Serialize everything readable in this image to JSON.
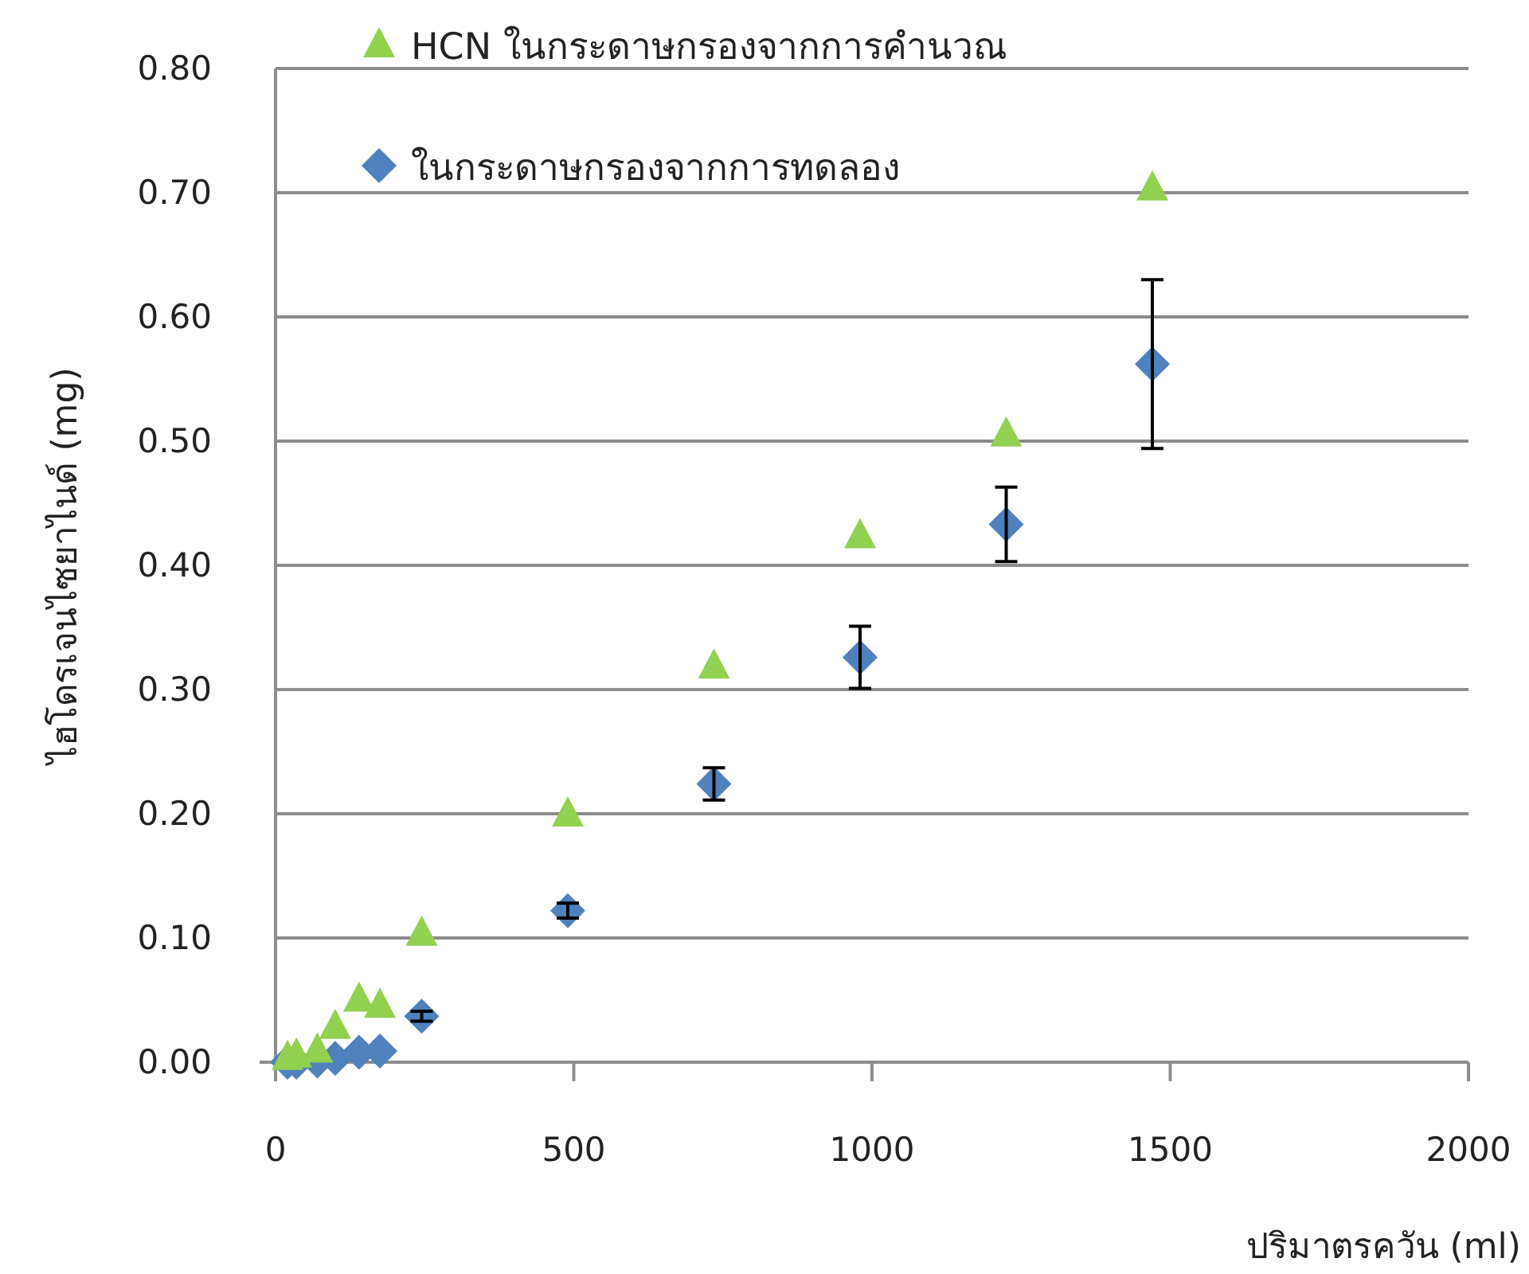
{
  "chart_data": {
    "type": "scatter",
    "xlabel": "ปริมาตรควัน (ml)",
    "ylabel": "ไฮโดรเจนไซยาไนด์ (mg)",
    "xlim": [
      0,
      2000
    ],
    "xticks": [
      0,
      500,
      1000,
      1500,
      2000
    ],
    "ylim": [
      0,
      0.8
    ],
    "yticks": [
      {
        "value": 0,
        "label": "0.00"
      },
      {
        "value": 0.1,
        "label": "0.10"
      },
      {
        "value": 0.2,
        "label": "0.20"
      },
      {
        "value": 0.3,
        "label": "0.30"
      },
      {
        "value": 0.4,
        "label": "0.40"
      },
      {
        "value": 0.5,
        "label": "0.50"
      },
      {
        "value": 0.6,
        "label": "0.60"
      },
      {
        "value": 0.7,
        "label": "0.70"
      },
      {
        "value": 0.8,
        "label": "0.80"
      }
    ],
    "grid": "y",
    "legend": "top",
    "series": [
      {
        "name": "HCN ในกระดาษกรองจากการคำนวณ",
        "color": "#92d050",
        "marker": "triangle",
        "x": [
          20,
          35,
          70,
          100,
          140,
          175,
          245,
          490,
          735,
          980,
          1225,
          1470
        ],
        "values": [
          0.004,
          0.006,
          0.01,
          0.029,
          0.051,
          0.046,
          0.104,
          0.2,
          0.319,
          0.424,
          0.506,
          0.704
        ]
      },
      {
        "name": "ในกระดาษกรองจากการทดลอง",
        "color": "#4f81bd",
        "marker": "diamond",
        "x": [
          20,
          35,
          70,
          100,
          140,
          175,
          245,
          490,
          735,
          980,
          1225,
          1470
        ],
        "values": [
          0,
          0,
          0.001,
          0.003,
          0.008,
          0.009,
          0.037,
          0.122,
          0.224,
          0.326,
          0.433,
          0.562
        ],
        "errors": [
          null,
          null,
          null,
          null,
          null,
          null,
          0.004,
          0.006,
          0.013,
          0.025,
          0.03,
          0.068
        ]
      }
    ]
  }
}
